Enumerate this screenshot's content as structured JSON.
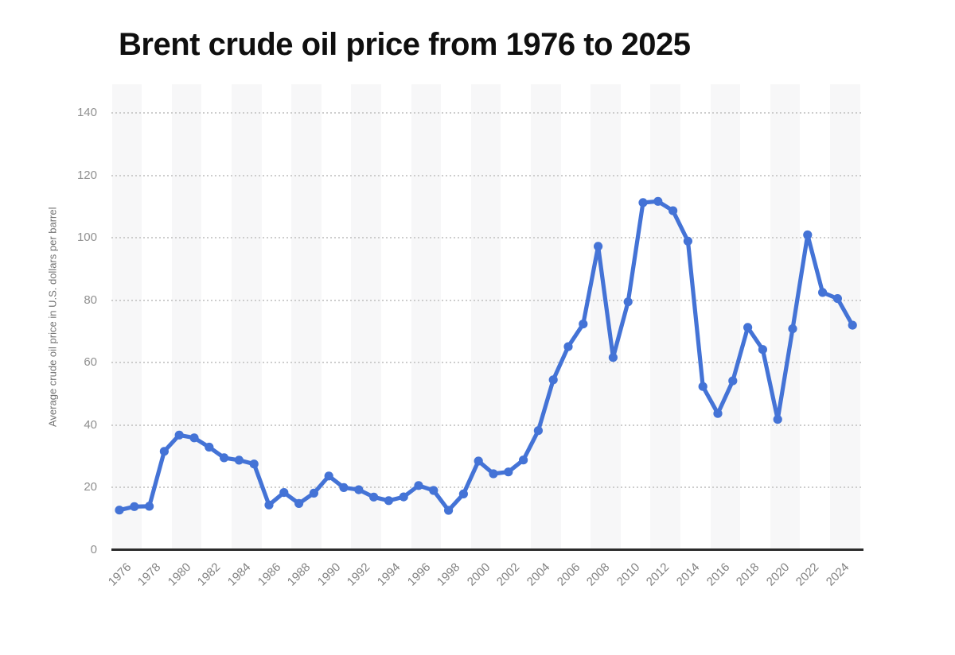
{
  "chart_data": {
    "type": "line",
    "title": "Brent crude oil price from 1976 to 2025",
    "ylabel": "Average crude oil price in U.S. dollars per barrel",
    "xlabel": "",
    "x": [
      1976,
      1977,
      1978,
      1979,
      1980,
      1981,
      1982,
      1983,
      1984,
      1985,
      1986,
      1987,
      1988,
      1989,
      1990,
      1991,
      1992,
      1993,
      1994,
      1995,
      1996,
      1997,
      1998,
      1999,
      2000,
      2001,
      2002,
      2003,
      2004,
      2005,
      2006,
      2007,
      2008,
      2009,
      2010,
      2011,
      2012,
      2013,
      2014,
      2015,
      2016,
      2017,
      2018,
      2019,
      2020,
      2021,
      2022,
      2023,
      2024,
      2025
    ],
    "values": [
      12.8,
      13.92,
      14.02,
      31.61,
      36.83,
      35.93,
      32.97,
      29.55,
      28.78,
      27.56,
      14.43,
      18.44,
      14.92,
      18.23,
      23.73,
      20.0,
      19.32,
      16.97,
      15.82,
      17.02,
      20.67,
      19.09,
      12.72,
      17.97,
      28.5,
      24.44,
      25.02,
      28.83,
      38.27,
      54.52,
      65.14,
      72.39,
      97.26,
      61.67,
      79.5,
      111.26,
      111.67,
      108.66,
      98.95,
      52.39,
      43.73,
      54.19,
      71.31,
      64.21,
      41.84,
      70.86,
      100.93,
      82.49,
      80.53,
      72.0
    ],
    "y_ticks": [
      0,
      20,
      40,
      60,
      80,
      100,
      120,
      140
    ],
    "x_tick_labels": [
      "1976",
      "1978",
      "1980",
      "1982",
      "1984",
      "1986",
      "1988",
      "1990",
      "1992",
      "1994",
      "1996",
      "1998",
      "2000",
      "2002",
      "2004",
      "2006",
      "2008",
      "2010",
      "2012",
      "2014",
      "2016",
      "2018",
      "2020",
      "2022",
      "2024"
    ],
    "ylim": [
      0,
      148
    ],
    "grid": "horizontal-dotted",
    "legend": "none",
    "line_color": "#4473d6",
    "marker_color": "#4473d6",
    "stripe_color": "#f7f7f8",
    "grid_color": "#cdcdcd",
    "axis_color": "#2b2b2b",
    "title_color": "#0f0f0f",
    "tick_label_color": "#8f8f8f"
  }
}
